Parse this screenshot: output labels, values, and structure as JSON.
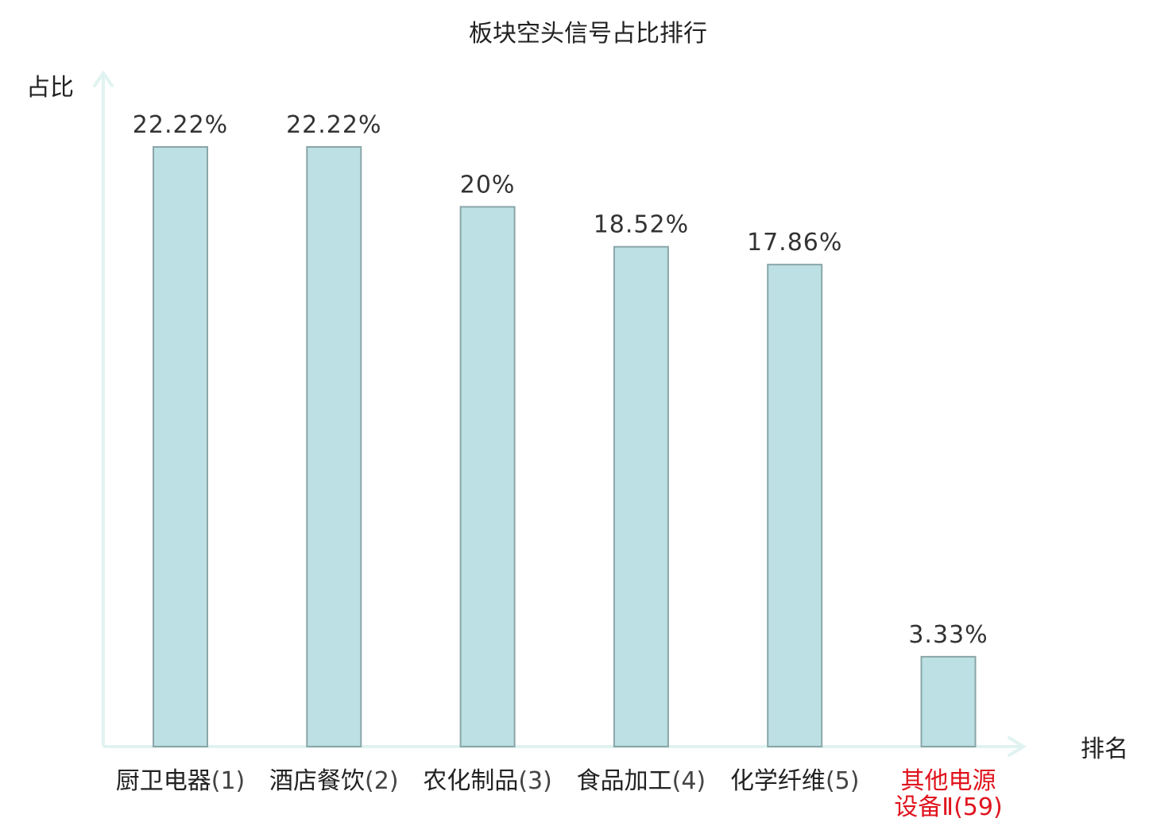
{
  "chart_data": {
    "type": "bar",
    "title": "板块空头信号占比排行",
    "ylabel": "占比",
    "xlabel": "排名",
    "categories": [
      {
        "name": "厨卫电器",
        "rank": "(1)",
        "highlight": false
      },
      {
        "name": "酒店餐饮",
        "rank": "(2)",
        "highlight": false
      },
      {
        "name": "农化制品",
        "rank": "(3)",
        "highlight": false
      },
      {
        "name": "食品加工",
        "rank": "(4)",
        "highlight": false
      },
      {
        "name": "化学纤维",
        "rank": "(5)",
        "highlight": false
      },
      {
        "name_line1": "其他电源",
        "name_line2": "设备Ⅱ",
        "rank": "(59)",
        "highlight": true
      }
    ],
    "values": [
      22.22,
      22.22,
      20,
      18.52,
      17.86,
      3.33
    ],
    "value_labels": [
      "22.22%",
      "22.22%",
      "20%",
      "18.52%",
      "17.86%",
      "3.33%"
    ],
    "ylim": [
      0,
      22.22
    ],
    "grid": false,
    "colors": {
      "bar_fill": "#bce0e3",
      "bar_stroke": "#8aa6a8",
      "axis": "#e0f3f0",
      "highlight_text": "#e0141e"
    }
  }
}
